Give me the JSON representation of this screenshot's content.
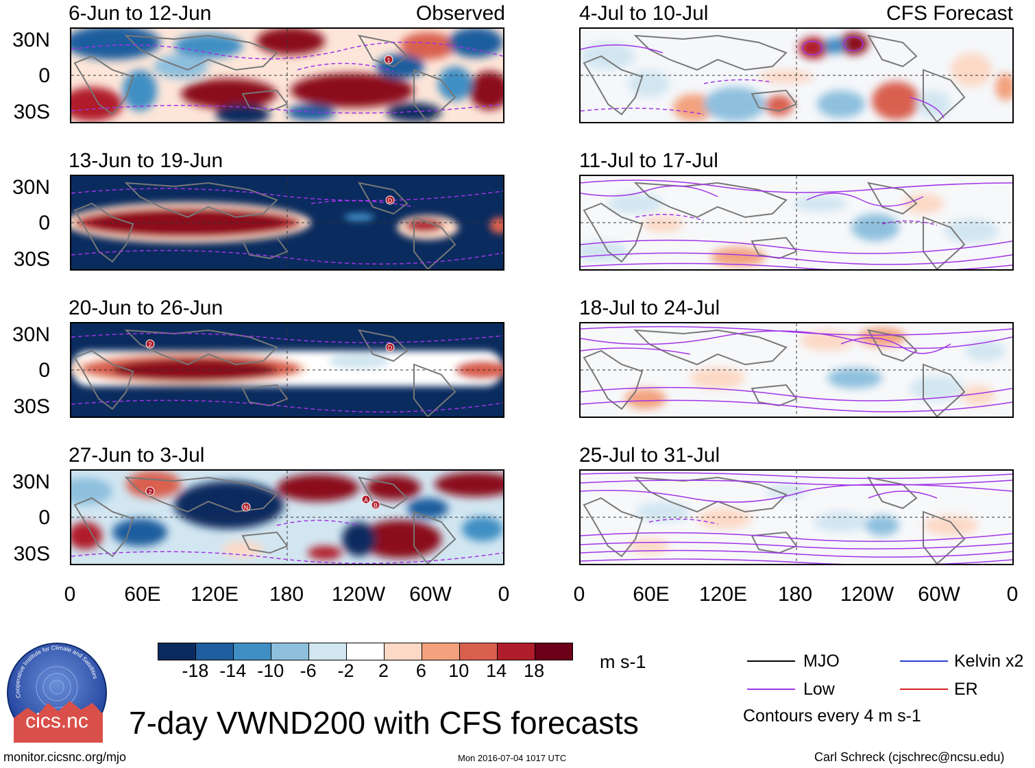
{
  "observed": {
    "tag": "Observed",
    "panels": [
      {
        "title": "6-Jun to 12-Jun"
      },
      {
        "title": "13-Jun to 19-Jun"
      },
      {
        "title": "20-Jun to 26-Jun"
      },
      {
        "title": "27-Jun to 3-Jul"
      }
    ]
  },
  "forecast": {
    "tag": "CFS Forecast",
    "panels": [
      {
        "title": "4-Jul to 10-Jul"
      },
      {
        "title": "11-Jul to 17-Jul"
      },
      {
        "title": "18-Jul to 24-Jul"
      },
      {
        "title": "25-Jul to 31-Jul"
      }
    ]
  },
  "axes": {
    "lat_labels": [
      "30N",
      "0",
      "30S"
    ],
    "lon_labels": [
      "0",
      "60E",
      "120E",
      "180",
      "120W",
      "60W",
      "0"
    ]
  },
  "colorbar": {
    "colors": [
      "#0a2b5e",
      "#1f5d9e",
      "#3f8fc4",
      "#8ec0de",
      "#d2e6f1",
      "#ffffff",
      "#fcd9c6",
      "#f3a27e",
      "#d9604f",
      "#b01d2b",
      "#6b0018"
    ],
    "ticks": [
      "-18",
      "-14",
      "-10",
      "-6",
      "-2",
      "2",
      "6",
      "10",
      "14",
      "18"
    ],
    "unit": "m s-1"
  },
  "legend": {
    "items": [
      {
        "label": "MJO",
        "color": "#000000"
      },
      {
        "label": "Kelvin x2",
        "color": "#2a3fd6"
      },
      {
        "label": "Low",
        "color": "#a033e6"
      },
      {
        "label": "ER",
        "color": "#d62020"
      }
    ],
    "note": "Contours every 4 m s-1"
  },
  "logo": {
    "text": "cics.nc",
    "ring_text": "Cooperative Institute for Climate and Satellites"
  },
  "footer": {
    "title": "7-day VWND200 with CFS forecasts",
    "url": "monitor.cicsnc.org/mjo",
    "timestamp": "Mon 2016-07-04 1017 UTC",
    "author": "Carl Schreck (cjschrec@ncsu.edu)"
  },
  "storm_markers": [
    {
      "panel": 0,
      "label": "1"
    },
    {
      "panel": 1,
      "label": "D"
    },
    {
      "panel": 2,
      "label": "2"
    },
    {
      "panel": 2,
      "label": "D"
    },
    {
      "panel": 3,
      "label": "2"
    },
    {
      "panel": 3,
      "label": "N"
    },
    {
      "panel": 3,
      "label": "A"
    },
    {
      "panel": 3,
      "label": "B"
    }
  ]
}
